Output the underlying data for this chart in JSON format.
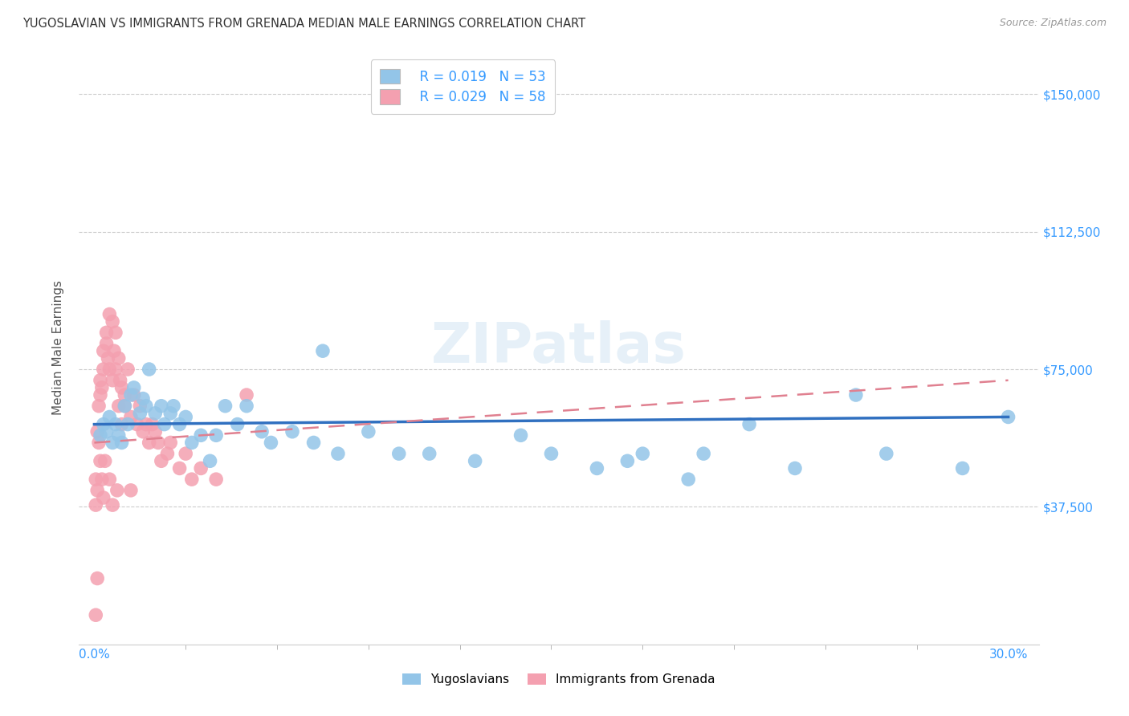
{
  "title": "YUGOSLAVIAN VS IMMIGRANTS FROM GRENADA MEDIAN MALE EARNINGS CORRELATION CHART",
  "source": "Source: ZipAtlas.com",
  "ylabel": "Median Male Earnings",
  "ylabel_ticks_vals": [
    150000,
    112500,
    75000,
    37500
  ],
  "ylim": [
    0,
    162000
  ],
  "xlim": [
    -0.5,
    31
  ],
  "watermark": "ZIPatlas",
  "legend_blue_R": "R = 0.019",
  "legend_blue_N": "N = 53",
  "legend_pink_R": "R = 0.029",
  "legend_pink_N": "N = 58",
  "legend_label_blue": "Yugoslavians",
  "legend_label_pink": "Immigrants from Grenada",
  "blue_color": "#93c5e8",
  "pink_color": "#f4a0b0",
  "blue_line_color": "#3070c0",
  "pink_line_color": "#e08090",
  "title_color": "#333333",
  "source_color": "#999999",
  "tick_color": "#3399ff",
  "grid_color": "#cccccc",
  "blue_x": [
    0.2,
    0.3,
    0.4,
    0.5,
    0.6,
    0.7,
    0.8,
    0.9,
    1.0,
    1.1,
    1.2,
    1.3,
    1.5,
    1.6,
    1.7,
    1.8,
    2.0,
    2.2,
    2.3,
    2.5,
    2.6,
    2.8,
    3.0,
    3.2,
    3.5,
    3.8,
    4.0,
    4.3,
    4.7,
    5.0,
    5.5,
    5.8,
    6.5,
    7.2,
    8.0,
    9.0,
    10.0,
    11.0,
    12.5,
    14.0,
    15.0,
    16.5,
    18.0,
    20.0,
    21.5,
    23.0,
    25.0,
    26.0,
    28.5,
    30.0,
    7.5,
    17.5,
    19.5
  ],
  "blue_y": [
    57000,
    60000,
    58000,
    62000,
    55000,
    60000,
    57000,
    55000,
    65000,
    60000,
    68000,
    70000,
    63000,
    67000,
    65000,
    75000,
    63000,
    65000,
    60000,
    63000,
    65000,
    60000,
    62000,
    55000,
    57000,
    50000,
    57000,
    65000,
    60000,
    65000,
    58000,
    55000,
    58000,
    55000,
    52000,
    58000,
    52000,
    52000,
    50000,
    57000,
    52000,
    48000,
    52000,
    52000,
    60000,
    48000,
    68000,
    52000,
    48000,
    62000,
    80000,
    50000,
    45000
  ],
  "pink_x": [
    0.1,
    0.15,
    0.2,
    0.2,
    0.25,
    0.3,
    0.3,
    0.4,
    0.4,
    0.45,
    0.5,
    0.5,
    0.6,
    0.6,
    0.65,
    0.7,
    0.7,
    0.8,
    0.8,
    0.85,
    0.9,
    0.9,
    1.0,
    1.0,
    1.1,
    1.2,
    1.3,
    1.4,
    1.5,
    1.6,
    1.7,
    1.8,
    1.9,
    2.0,
    2.1,
    2.2,
    2.4,
    2.5,
    2.8,
    3.0,
    3.5,
    4.0,
    0.05,
    0.1,
    0.05,
    0.15,
    0.2,
    0.25,
    0.3,
    0.35,
    0.5,
    0.6,
    0.75,
    1.2,
    3.2,
    0.05,
    0.1,
    5.0
  ],
  "pink_y": [
    58000,
    65000,
    68000,
    72000,
    70000,
    80000,
    75000,
    85000,
    82000,
    78000,
    90000,
    75000,
    88000,
    72000,
    80000,
    85000,
    75000,
    78000,
    65000,
    72000,
    60000,
    70000,
    65000,
    68000,
    75000,
    62000,
    68000,
    60000,
    65000,
    58000,
    60000,
    55000,
    60000,
    58000,
    55000,
    50000,
    52000,
    55000,
    48000,
    52000,
    48000,
    45000,
    45000,
    42000,
    38000,
    55000,
    50000,
    45000,
    40000,
    50000,
    45000,
    38000,
    42000,
    42000,
    45000,
    8000,
    18000,
    68000
  ]
}
